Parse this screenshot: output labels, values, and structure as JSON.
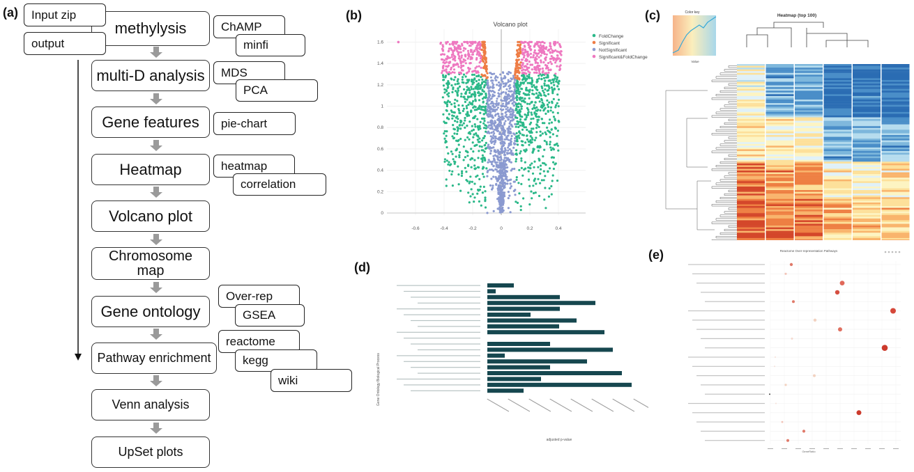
{
  "panel_labels": {
    "a": "(a)",
    "b": "(b)",
    "c": "(c)",
    "d": "(d)",
    "e": "(e)"
  },
  "flowchart": {
    "steps": [
      {
        "label": "methylysis",
        "tags": [
          "ChAMP",
          "minfi"
        ]
      },
      {
        "label": "multi-D analysis",
        "tags": [
          "MDS",
          "PCA"
        ]
      },
      {
        "label": "Gene features",
        "tags": [
          "pie-chart"
        ]
      },
      {
        "label": "Heatmap",
        "tags": [
          "heatmap",
          "correlation"
        ]
      },
      {
        "label": "Volcano plot",
        "tags": []
      },
      {
        "label": "Chromosome map",
        "tags": []
      },
      {
        "label": "Gene ontology",
        "tags": [
          "Over-rep",
          "GSEA"
        ]
      },
      {
        "label": "Pathway enrichment",
        "tags": [
          "reactome",
          "kegg",
          "wiki"
        ]
      },
      {
        "label": "Venn analysis",
        "tags": []
      },
      {
        "label": "UpSet plots",
        "tags": []
      }
    ],
    "inputs": [
      "Input zip",
      "output"
    ]
  },
  "volcano": {
    "title": "Volcano plot",
    "legend": [
      "FoldChange",
      "Significant",
      "NotSignificant",
      "Significant&FoldChange"
    ],
    "colors": {
      "FoldChange": "#2bb889",
      "Significant": "#ee7c44",
      "NotSignificant": "#8b9ad0",
      "Significant&FoldChange": "#ee78c0"
    },
    "x_ticks": [
      "-0.6",
      "-0.4",
      "-0.2",
      "0",
      "0.2",
      "0.4"
    ],
    "y_ticks": [
      "0",
      "0.2",
      "0.4",
      "0.6",
      "0.8",
      "1",
      "1.2",
      "1.4",
      "1.6"
    ]
  },
  "heatmap": {
    "title": "Heatmap (top 100)",
    "color_key_title": "Color key",
    "color_key_xlabel": "Value"
  },
  "go_bar": {
    "ylabel": "Gene Ontology Biological Process",
    "xlabel": "adjusted p-value"
  },
  "reactome": {
    "title": "Reactome Over-representation Pathways",
    "xlabel": "GeneRatio"
  }
}
